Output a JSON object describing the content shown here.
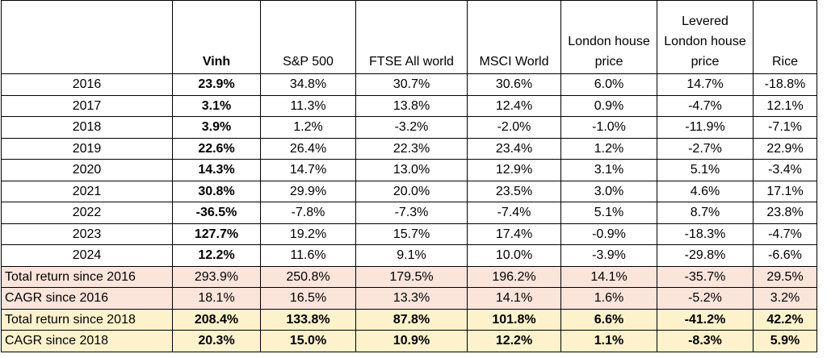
{
  "table": {
    "header": [
      "",
      "Vinh",
      "S&P 500",
      "FTSE All world",
      "MSCI World",
      "London house price",
      "Levered London house price",
      "Rice"
    ],
    "rows": [
      [
        "2016",
        "23.9%",
        "34.8%",
        "30.7%",
        "30.6%",
        "6.0%",
        "14.7%",
        "-18.8%"
      ],
      [
        "2017",
        "3.1%",
        "11.3%",
        "13.8%",
        "12.4%",
        "0.9%",
        "-4.7%",
        "12.1%"
      ],
      [
        "2018",
        "3.9%",
        "1.2%",
        "-3.2%",
        "-2.0%",
        "-1.0%",
        "-11.9%",
        "-7.1%"
      ],
      [
        "2019",
        "22.6%",
        "26.4%",
        "22.3%",
        "23.4%",
        "1.2%",
        "-2.7%",
        "22.9%"
      ],
      [
        "2020",
        "14.3%",
        "14.7%",
        "13.0%",
        "12.9%",
        "3.1%",
        "5.1%",
        "-3.4%"
      ],
      [
        "2021",
        "30.8%",
        "29.9%",
        "20.0%",
        "23.5%",
        "3.0%",
        "4.6%",
        "17.1%"
      ],
      [
        "2022",
        "-36.5%",
        "-7.8%",
        "-7.3%",
        "-7.4%",
        "5.1%",
        "8.7%",
        "23.8%"
      ],
      [
        "2023",
        "127.7%",
        "19.2%",
        "15.7%",
        "17.4%",
        "-0.9%",
        "-18.3%",
        "-4.7%"
      ],
      [
        "2024",
        "12.2%",
        "11.6%",
        "9.1%",
        "10.0%",
        "-3.9%",
        "-29.8%",
        "-6.6%"
      ],
      [
        "Total return since 2016",
        "293.9%",
        "250.8%",
        "179.5%",
        "196.2%",
        "14.1%",
        "-35.7%",
        "29.5%"
      ],
      [
        "CAGR since 2016",
        "18.1%",
        "16.5%",
        "13.3%",
        "14.1%",
        "1.6%",
        "-5.2%",
        "3.2%"
      ],
      [
        "Total return since 2018",
        "208.4%",
        "133.8%",
        "87.8%",
        "101.8%",
        "6.6%",
        "-41.2%",
        "42.2%"
      ],
      [
        "CAGR since 2018",
        "20.3%",
        "15.0%",
        "10.9%",
        "12.2%",
        "1.1%",
        "-8.3%",
        "5.9%"
      ]
    ]
  }
}
